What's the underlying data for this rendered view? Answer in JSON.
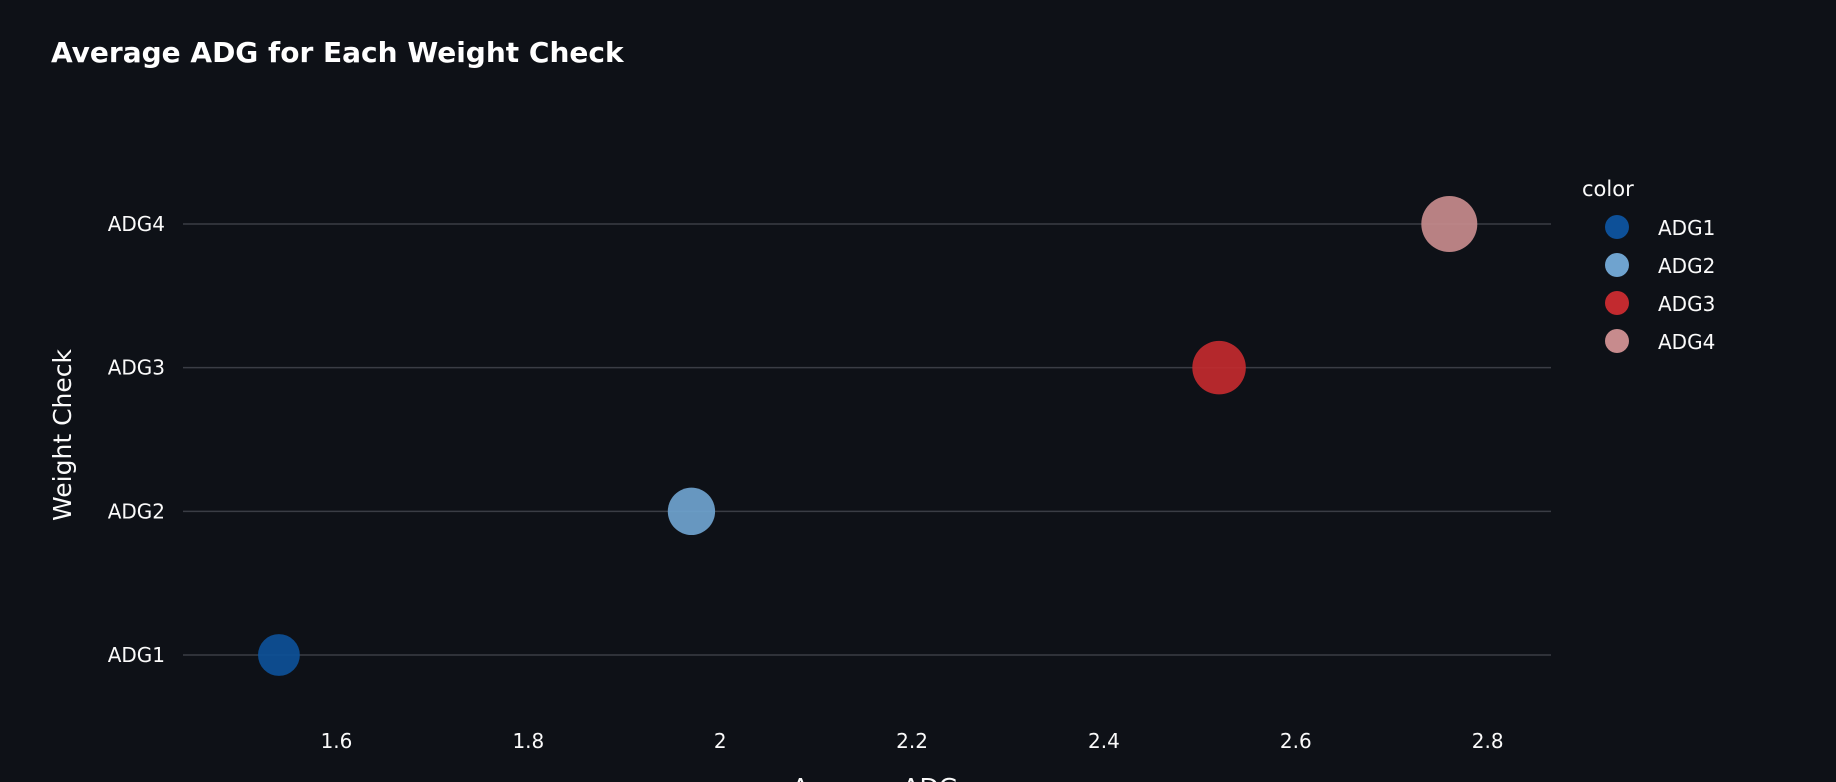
{
  "chart_data": {
    "type": "scatter",
    "title": "Average ADG for Each Weight Check",
    "xlabel": "Average ADG",
    "ylabel": "Weight Check",
    "x_ticks": [
      "1.6",
      "1.8",
      "2",
      "2.2",
      "2.4",
      "2.6",
      "2.8"
    ],
    "y_categories": [
      "ADG1",
      "ADG2",
      "ADG3",
      "ADG4"
    ],
    "xlim": [
      1.44,
      2.866
    ],
    "grid": "horizontal",
    "legend": {
      "title": "color",
      "placement": "right",
      "entries": [
        "ADG1",
        "ADG2",
        "ADG3",
        "ADG4"
      ]
    },
    "series": [
      {
        "name": "ADG1",
        "x": 1.54,
        "y": "ADG1",
        "color": "#0d5098"
      },
      {
        "name": "ADG2",
        "x": 1.97,
        "y": "ADG2",
        "color": "#6fa3cf"
      },
      {
        "name": "ADG3",
        "x": 2.52,
        "y": "ADG3",
        "color": "#c22a2f"
      },
      {
        "name": "ADG4",
        "x": 2.76,
        "y": "ADG4",
        "color": "#c78b8d"
      }
    ]
  }
}
